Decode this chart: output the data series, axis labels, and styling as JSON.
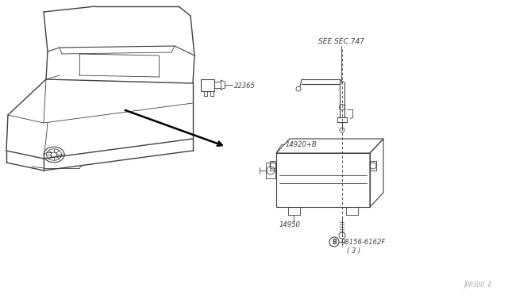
{
  "bg_color": "#ffffff",
  "line_color": "#404040",
  "text_color": "#404040",
  "fig_width": 6.4,
  "fig_height": 3.72,
  "dpi": 100,
  "labels": {
    "see_sec": "SEE SEC.747",
    "part_22365": "22365",
    "part_14920": "14920+B",
    "part_14950": "14950",
    "part_bolt": "08156-6162F",
    "part_bolt2": "( 3 )",
    "watermark": "JPP300  II"
  }
}
